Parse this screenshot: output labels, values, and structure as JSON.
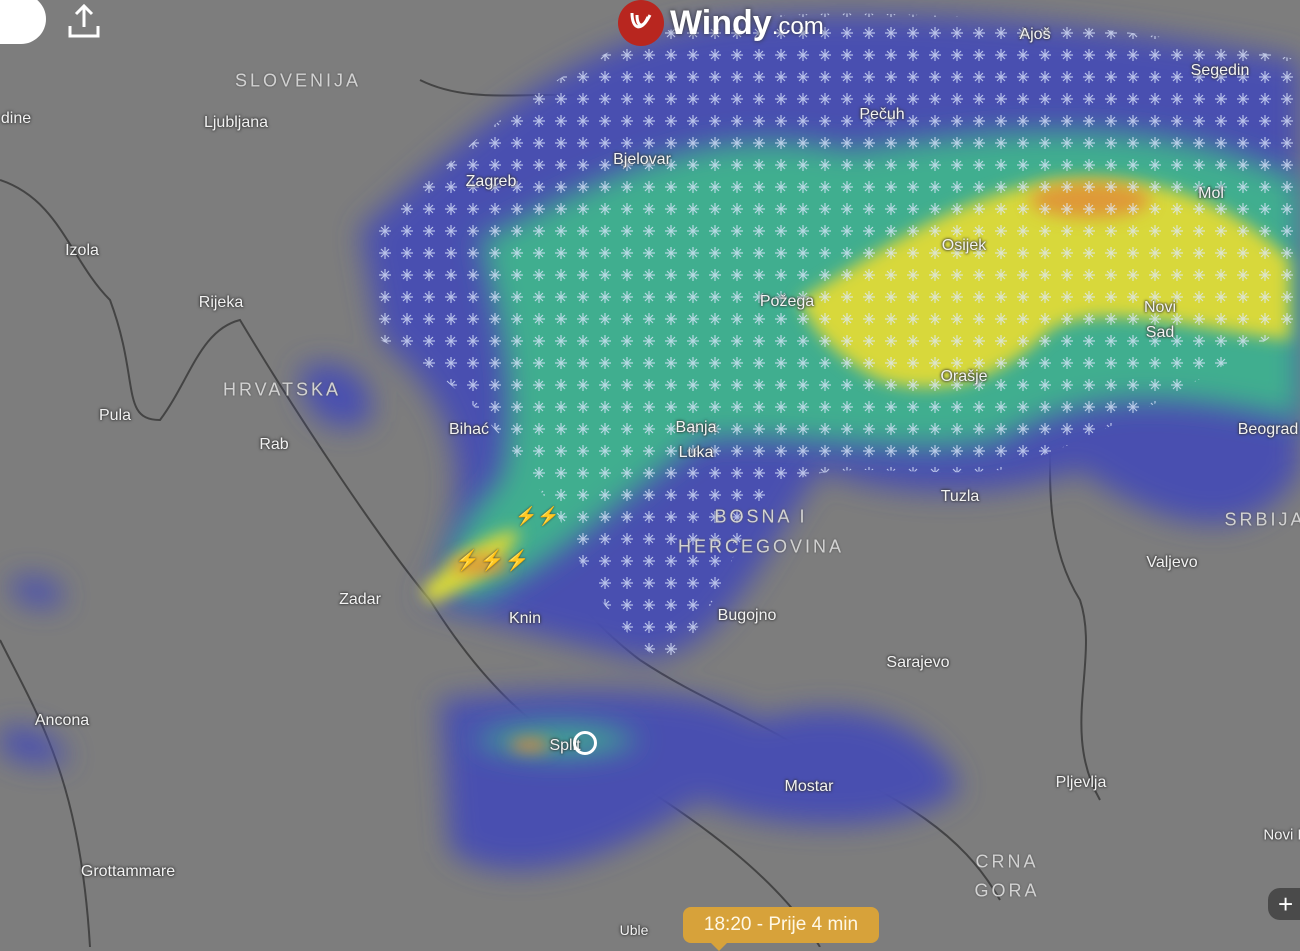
{
  "app": {
    "brand": "Windy",
    "brand_suffix": ".com"
  },
  "timeline": {
    "label": "18:20 - Prije 4 min"
  },
  "controls": {
    "zoom_in": "+"
  },
  "layer": {
    "type": "radar-precipitation",
    "colors": {
      "snow_low": "#4a4fb0",
      "mid": "#3fae8f",
      "high": "#d8d83a",
      "heavy": "#e08a3a",
      "background": "#7d7d7d",
      "accent": "#d7a23a"
    }
  },
  "icons": [
    "share-icon",
    "windy-logo-icon",
    "lightning-icon",
    "snowflake-icon",
    "location-icon"
  ],
  "labels": {
    "countries": [
      "SLOVENIJA",
      "HRVATSKA",
      "BOSNA I",
      "HERCEGOVINA",
      "SRBIJA",
      "CRNA",
      "GORA"
    ],
    "cities": [
      "Ljubljana",
      "dine",
      "Zagreb",
      "Bjelovar",
      "Pečuh",
      "Ajoš",
      "Segedin",
      "Mol",
      "Osijek",
      "Novi",
      "Sad",
      "Izola",
      "Rijeka",
      "Požega",
      "Orašje",
      "Pula",
      "Rab",
      "Bihać",
      "Banja",
      "Luka",
      "Beograd",
      "Tuzla",
      "Valjevo",
      "Zadar",
      "Knin",
      "Bugojno",
      "Sarajevo",
      "Ancona",
      "Split",
      "Mostar",
      "Pljevlja",
      "Grottammare",
      "Uble",
      "Novi Pazar"
    ]
  }
}
